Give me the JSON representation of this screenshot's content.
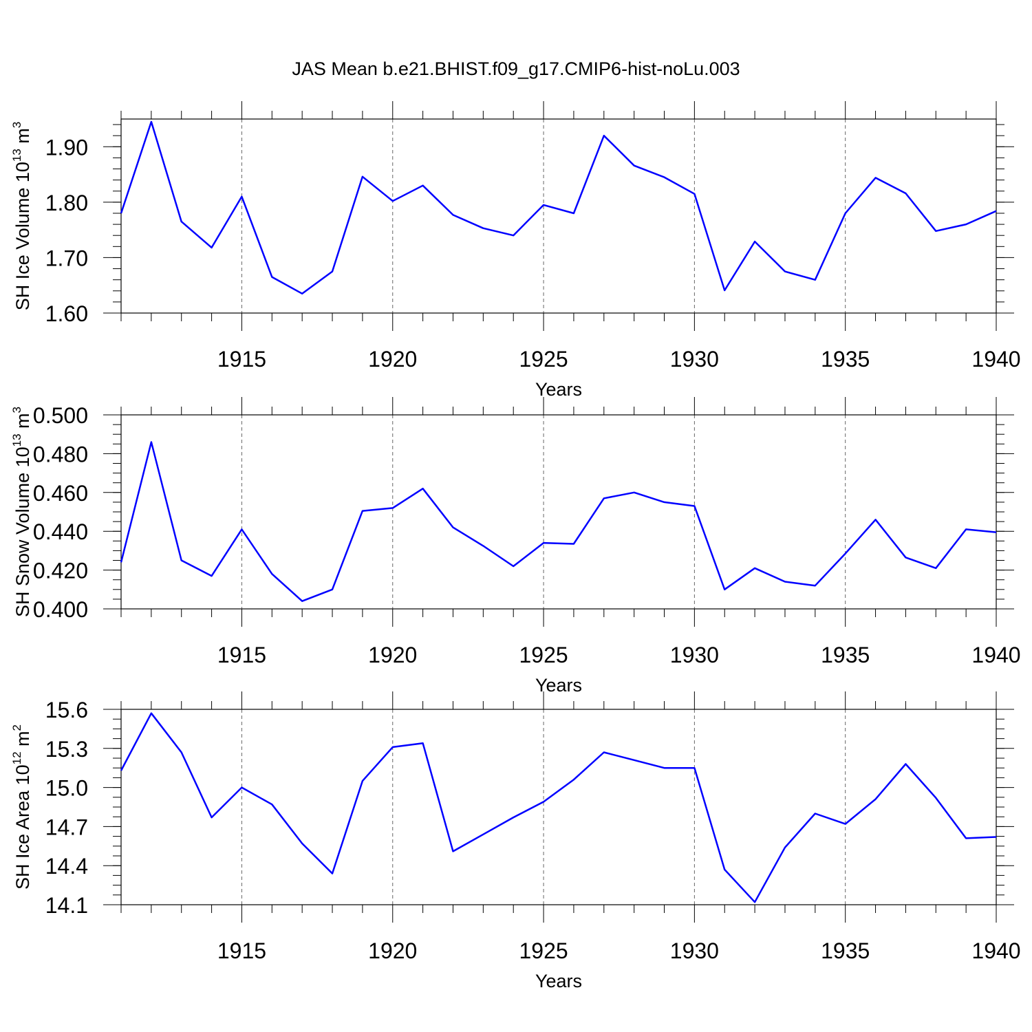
{
  "title": "JAS Mean b.e21.BHIST.f09_g17.CMIP6-hist-noLu.003",
  "line_color": "#0000ff",
  "chart_data": [
    {
      "type": "line",
      "id": "ice-volume",
      "ylabel_main": "SH Ice Volume 10",
      "ylabel_exp": "13",
      "ylabel_unit": " m",
      "ylabel_unit_exp": "3",
      "xlabel": "Years",
      "xlim": [
        1911,
        1940
      ],
      "ylim": [
        1.6,
        1.95
      ],
      "yticks": [
        1.6,
        1.7,
        1.8,
        1.9
      ],
      "ytick_labels": [
        "1.60",
        "1.70",
        "1.80",
        "1.90"
      ],
      "yminor_step": 0.02,
      "xticks": [
        1915,
        1920,
        1925,
        1930,
        1935,
        1940
      ],
      "xtick_labels": [
        "1915",
        "1920",
        "1925",
        "1930",
        "1935",
        "1940"
      ],
      "x": [
        1911,
        1912,
        1913,
        1914,
        1915,
        1916,
        1917,
        1918,
        1919,
        1920,
        1921,
        1922,
        1923,
        1924,
        1925,
        1926,
        1927,
        1928,
        1929,
        1930,
        1931,
        1932,
        1933,
        1934,
        1935,
        1936,
        1937,
        1938,
        1939,
        1940
      ],
      "values": [
        1.78,
        1.945,
        1.765,
        1.718,
        1.81,
        1.665,
        1.635,
        1.675,
        1.846,
        1.802,
        1.83,
        1.777,
        1.753,
        1.74,
        1.795,
        1.78,
        1.92,
        1.866,
        1.845,
        1.815,
        1.641,
        1.729,
        1.675,
        1.66,
        1.78,
        1.844,
        1.816,
        1.748,
        1.76,
        1.784
      ]
    },
    {
      "type": "line",
      "id": "snow-volume",
      "ylabel_main": "SH Snow Volume 10",
      "ylabel_exp": "13",
      "ylabel_unit": " m",
      "ylabel_unit_exp": "3",
      "xlabel": "Years",
      "xlim": [
        1911,
        1940
      ],
      "ylim": [
        0.4,
        0.5
      ],
      "yticks": [
        0.4,
        0.42,
        0.44,
        0.46,
        0.48,
        0.5
      ],
      "ytick_labels": [
        "0.400",
        "0.420",
        "0.440",
        "0.460",
        "0.480",
        "0.500"
      ],
      "yminor_step": 0.005,
      "xticks": [
        1915,
        1920,
        1925,
        1930,
        1935,
        1940
      ],
      "xtick_labels": [
        "1915",
        "1920",
        "1925",
        "1930",
        "1935",
        "1940"
      ],
      "x": [
        1911,
        1912,
        1913,
        1914,
        1915,
        1916,
        1917,
        1918,
        1919,
        1920,
        1921,
        1922,
        1923,
        1924,
        1925,
        1926,
        1927,
        1928,
        1929,
        1930,
        1931,
        1932,
        1933,
        1934,
        1935,
        1936,
        1937,
        1938,
        1939,
        1940
      ],
      "values": [
        0.424,
        0.486,
        0.425,
        0.417,
        0.441,
        0.418,
        0.404,
        0.41,
        0.4505,
        0.452,
        0.462,
        0.442,
        0.4325,
        0.422,
        0.434,
        0.4335,
        0.457,
        0.46,
        0.455,
        0.453,
        0.41,
        0.421,
        0.414,
        0.412,
        0.4285,
        0.446,
        0.4265,
        0.421,
        0.441,
        0.4395
      ]
    },
    {
      "type": "line",
      "id": "ice-area",
      "ylabel_main": "SH Ice Area 10",
      "ylabel_exp": "12",
      "ylabel_unit": " m",
      "ylabel_unit_exp": "2",
      "xlabel": "Years",
      "xlim": [
        1911,
        1940
      ],
      "ylim": [
        14.1,
        15.6
      ],
      "yticks": [
        14.1,
        14.4,
        14.7,
        15.0,
        15.3,
        15.6
      ],
      "ytick_labels": [
        "14.1",
        "14.4",
        "14.7",
        "15.0",
        "15.3",
        "15.6"
      ],
      "yminor_step": 0.075,
      "xticks": [
        1915,
        1920,
        1925,
        1930,
        1935,
        1940
      ],
      "xtick_labels": [
        "1915",
        "1920",
        "1925",
        "1930",
        "1935",
        "1940"
      ],
      "x": [
        1911,
        1912,
        1913,
        1914,
        1915,
        1916,
        1917,
        1918,
        1919,
        1920,
        1921,
        1922,
        1923,
        1924,
        1925,
        1926,
        1927,
        1928,
        1929,
        1930,
        1931,
        1932,
        1933,
        1934,
        1935,
        1936,
        1937,
        1938,
        1939,
        1940
      ],
      "values": [
        15.13,
        15.57,
        15.27,
        14.77,
        15.0,
        14.87,
        14.57,
        14.34,
        15.05,
        15.31,
        15.34,
        14.51,
        14.64,
        14.77,
        14.89,
        15.06,
        15.27,
        15.21,
        15.15,
        15.15,
        14.37,
        14.12,
        14.54,
        14.8,
        14.72,
        14.91,
        15.18,
        14.92,
        14.61,
        14.62
      ]
    }
  ]
}
